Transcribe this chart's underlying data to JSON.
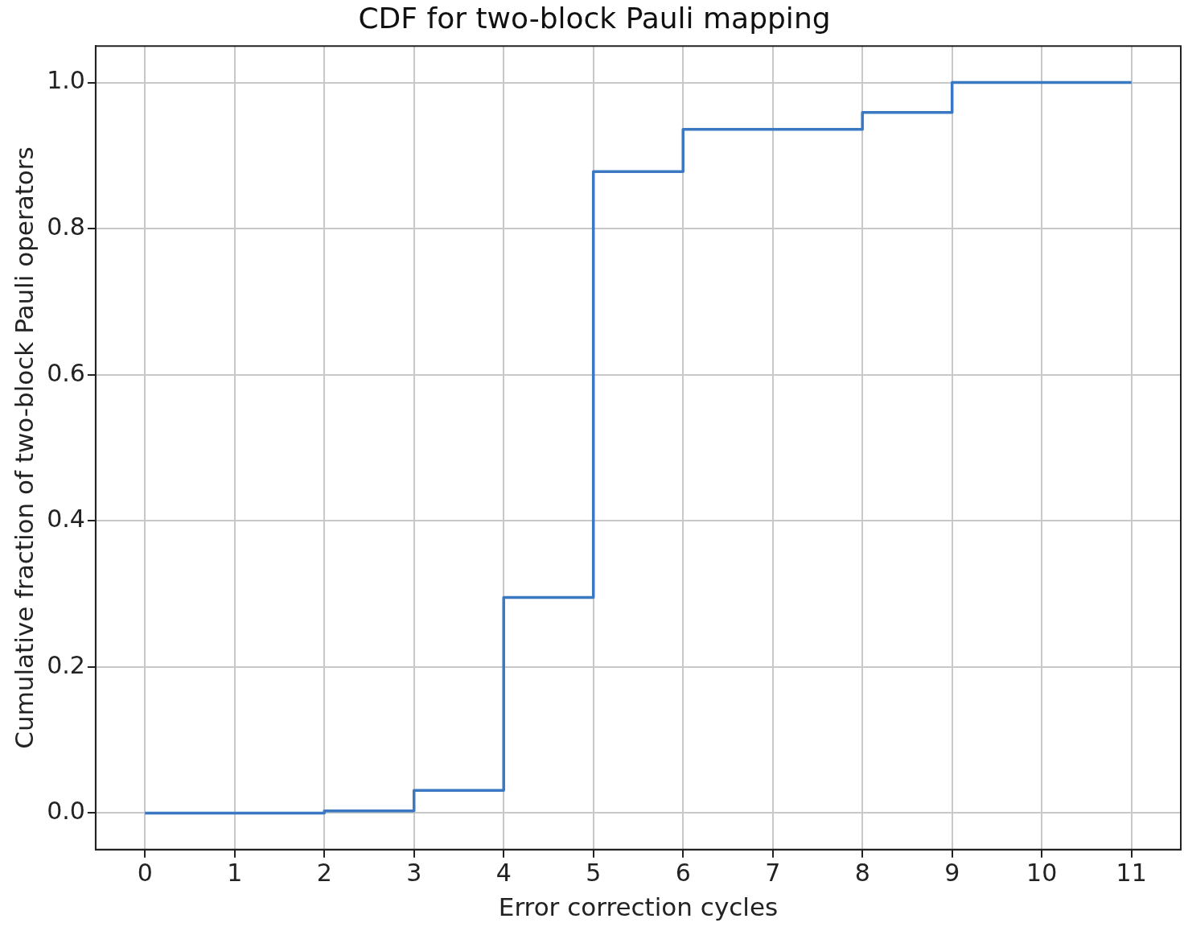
{
  "chart_data": {
    "type": "step",
    "title": "CDF for two-block Pauli mapping",
    "xlabel": "Error correction cycles",
    "ylabel": "Cumulative fraction of two-block Pauli operators",
    "x": [
      0,
      1,
      2,
      3,
      4,
      5,
      6,
      7,
      8,
      9,
      10,
      11
    ],
    "series": [
      {
        "color": "#3a78c2",
        "values": [
          0,
          0,
          0.003,
          0.031,
          0.295,
          0.878,
          0.936,
          0.936,
          0.959,
          1.0,
          1.0,
          1.0
        ]
      }
    ],
    "xlim": [
      -0.55,
      11.55
    ],
    "ylim": [
      -0.05,
      1.05
    ],
    "xticks": [
      0,
      1,
      2,
      3,
      4,
      5,
      6,
      7,
      8,
      9,
      10,
      11
    ],
    "yticks": [
      {
        "value": 0,
        "label": "0.0"
      },
      {
        "value": 0.2,
        "label": "0.2"
      },
      {
        "value": 0.4,
        "label": "0.4"
      },
      {
        "value": 0.6,
        "label": "0.6"
      },
      {
        "value": 0.8,
        "label": "0.8"
      },
      {
        "value": 1,
        "label": "1.0"
      }
    ],
    "grid": true,
    "legend": false,
    "line_style": "solid",
    "marker": "none"
  }
}
